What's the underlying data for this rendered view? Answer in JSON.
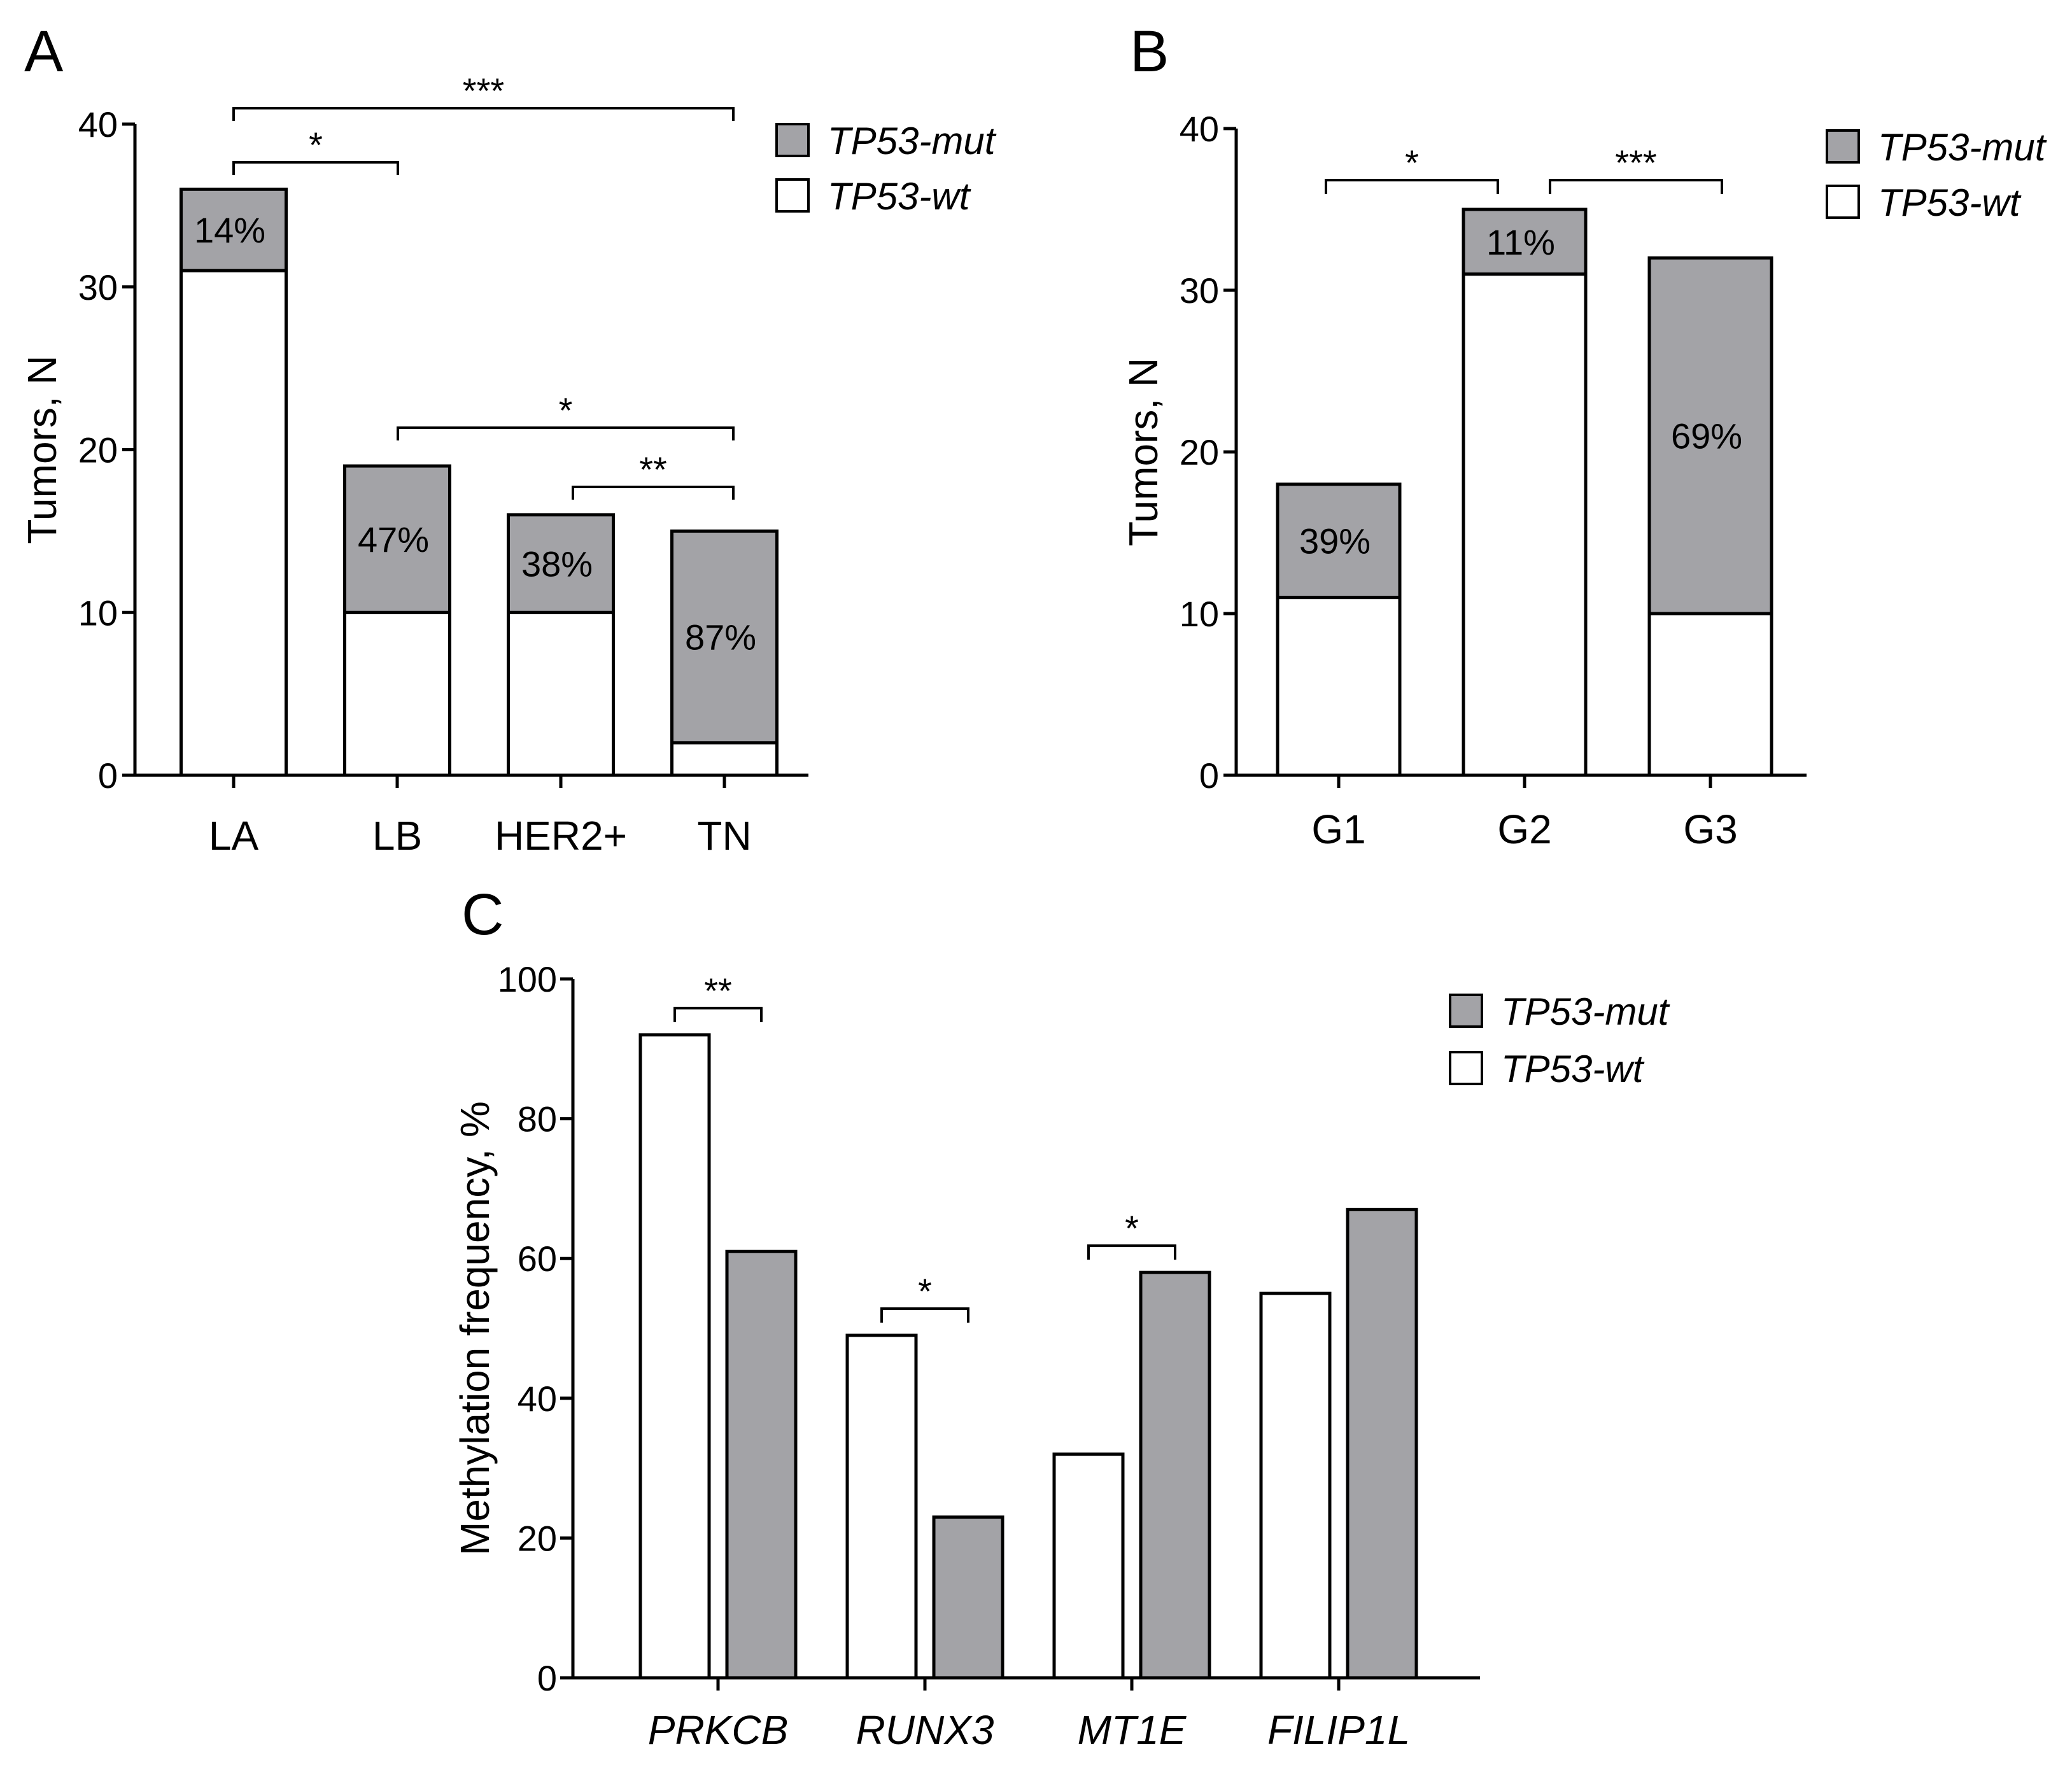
{
  "colors": {
    "mut": "#a3a3a7",
    "wt": "#ffffff",
    "line": "#000000"
  },
  "legend": {
    "mut": "TP53-mut",
    "wt": "TP53-wt"
  },
  "chart_data": [
    {
      "id": "A",
      "panel": "A",
      "type": "bar",
      "stacked": true,
      "ylabel": "Tumors, N",
      "ylim": [
        0,
        40
      ],
      "yticks": [
        0,
        10,
        20,
        30,
        40
      ],
      "categories": [
        "LA",
        "LB",
        "HER2+",
        "TN"
      ],
      "series": [
        {
          "name": "TP53-wt",
          "values": [
            31,
            10,
            10,
            2
          ]
        },
        {
          "name": "TP53-mut",
          "values": [
            5,
            9,
            6,
            13
          ]
        }
      ],
      "percent_labels": [
        "14%",
        "47%",
        "38%",
        "87%"
      ],
      "significance": [
        {
          "from": "LA",
          "to": "LB",
          "label": "*"
        },
        {
          "from": "LA",
          "to": "TN",
          "label": "***"
        },
        {
          "from": "LB",
          "to": "TN",
          "label": "*"
        },
        {
          "from": "HER2+",
          "to": "TN",
          "label": "**"
        }
      ]
    },
    {
      "id": "B",
      "panel": "B",
      "type": "bar",
      "stacked": true,
      "ylabel": "Tumors, N",
      "ylim": [
        0,
        40
      ],
      "yticks": [
        0,
        10,
        20,
        30,
        40
      ],
      "categories": [
        "G1",
        "G2",
        "G3"
      ],
      "series": [
        {
          "name": "TP53-wt",
          "values": [
            11,
            31,
            10
          ]
        },
        {
          "name": "TP53-mut",
          "values": [
            7,
            4,
            22
          ]
        }
      ],
      "percent_labels": [
        "39%",
        "11%",
        "69%"
      ],
      "significance": [
        {
          "from": "G1",
          "to": "G2",
          "label": "*"
        },
        {
          "from": "G2",
          "to": "G3",
          "label": "***"
        }
      ]
    },
    {
      "id": "C",
      "panel": "C",
      "type": "bar",
      "stacked": false,
      "ylabel": "Methylation frequency, %",
      "ylim": [
        0,
        100
      ],
      "yticks": [
        0,
        20,
        40,
        60,
        80,
        100
      ],
      "categories": [
        "PRKCB",
        "RUNX3",
        "MT1E",
        "FILIP1L"
      ],
      "series": [
        {
          "name": "TP53-wt",
          "values": [
            92,
            49,
            32,
            55
          ]
        },
        {
          "name": "TP53-mut",
          "values": [
            61,
            23,
            58,
            67
          ]
        }
      ],
      "significance": [
        {
          "category": "PRKCB",
          "label": "**"
        },
        {
          "category": "RUNX3",
          "label": "*"
        },
        {
          "category": "MT1E",
          "label": "*"
        }
      ]
    }
  ]
}
